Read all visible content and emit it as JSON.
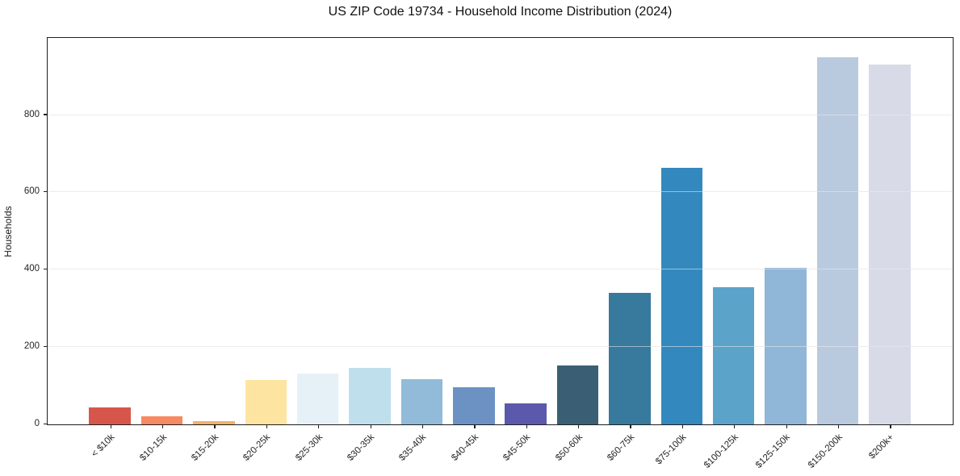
{
  "figure": {
    "title": "US ZIP Code 19734 - Household Income Distribution (2024)",
    "ylabel": "Households"
  },
  "chart_data": {
    "type": "bar",
    "title": "US ZIP Code 19734 - Household Income Distribution (2024)",
    "xlabel": "",
    "ylabel": "Households",
    "categories": [
      "< $10k",
      "$10-15k",
      "$15-20k",
      "$20-25k",
      "$25-30k",
      "$30-35k",
      "$35-40k",
      "$40-45k",
      "$45-50k",
      "$50-60k",
      "$60-75k",
      "$75-100k",
      "$100-125k",
      "$125-150k",
      "$150-200k",
      "$200k+"
    ],
    "values": [
      44,
      20,
      8,
      114,
      132,
      147,
      116,
      97,
      54,
      153,
      340,
      664,
      354,
      404,
      950,
      930
    ],
    "bar_colors": [
      "#d7564c",
      "#f68a62",
      "#f0b16c",
      "#fde4a0",
      "#e6f1f7",
      "#bfdfed",
      "#91bbd8",
      "#6c92c4",
      "#5b59ab",
      "#3a5f74",
      "#38799e",
      "#3389bd",
      "#5ca3c9",
      "#90b6d8",
      "#b9cade",
      "#d8dae7"
    ],
    "yticks": [
      0,
      200,
      400,
      600,
      800
    ],
    "ylim": [
      0,
      997.5
    ],
    "grid": "horizontal-only",
    "legend": "none",
    "bar_width_fraction": 0.8,
    "tick_label_rotation_deg": 45
  }
}
